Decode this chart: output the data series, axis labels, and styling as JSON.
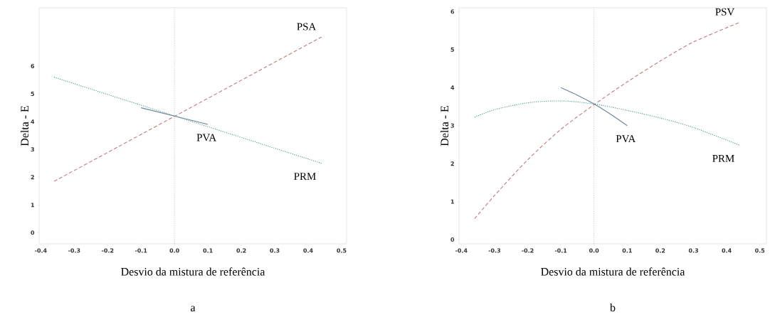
{
  "chart_data": [
    {
      "type": "line",
      "xlabel": "Desvio da mistura de referência",
      "ylabel": "Delta - E",
      "annotations": [
        "a"
      ],
      "xlim": [
        -0.405,
        0.515
      ],
      "ylim": [
        -0.4,
        8.1
      ],
      "xticks": [
        -0.4,
        -0.3,
        -0.2,
        -0.1,
        {
          "value": 0,
          "label": "0.0"
        },
        0.1,
        0.2,
        0.3,
        0.4,
        0.5
      ],
      "yticks": [
        0,
        1,
        2,
        3,
        4,
        5,
        6
      ],
      "ref_lines": [
        {
          "axis": "x",
          "value": 0,
          "color": "#a0a8b8",
          "line_style": "dotted"
        }
      ],
      "series": [
        {
          "name": "PSA",
          "color": "#c07a7a",
          "line_style": "dashed",
          "x": [
            -0.36,
            0.44
          ],
          "values": [
            1.85,
            7.05
          ]
        },
        {
          "name": "PRM",
          "color": "#4f9a8c",
          "line_style": "dotted",
          "x": [
            -0.36,
            0.44
          ],
          "values": [
            5.6,
            2.5
          ]
        },
        {
          "name": "PVA",
          "color": "#6d8096",
          "line_style": "solid",
          "x": [
            -0.1,
            0.1
          ],
          "values": [
            4.5,
            3.9
          ]
        }
      ]
    },
    {
      "type": "line",
      "xlabel": "Desvio da mistura de referência",
      "ylabel": "Delta - E",
      "annotations": [
        "b"
      ],
      "xlim": [
        -0.407,
        0.52
      ],
      "ylim": [
        -0.11,
        6.1
      ],
      "xticks": [
        -0.4,
        -0.3,
        -0.2,
        -0.1,
        {
          "value": 0,
          "label": "0.0"
        },
        0.1,
        0.2,
        0.3,
        0.4,
        0.5
      ],
      "yticks": [
        0,
        1,
        2,
        3,
        4,
        5,
        6
      ],
      "ref_lines": [
        {
          "axis": "x",
          "value": 0,
          "color": "#a0a8b8",
          "line_style": "dotted"
        }
      ],
      "series": [
        {
          "name": "PSV",
          "color": "#c07a7a",
          "line_style": "dashed",
          "x": [
            -0.36,
            -0.3,
            -0.2,
            -0.1,
            0,
            0.1,
            0.2,
            0.3,
            0.44
          ],
          "values": [
            0.55,
            1.16,
            2.1,
            2.9,
            3.55,
            4.15,
            4.7,
            5.2,
            5.72
          ]
        },
        {
          "name": "PRM",
          "color": "#4f9a8c",
          "line_style": "dotted",
          "x": [
            -0.36,
            -0.3,
            -0.2,
            -0.1,
            0,
            0.1,
            0.2,
            0.3,
            0.44
          ],
          "values": [
            3.22,
            3.42,
            3.6,
            3.65,
            3.57,
            3.4,
            3.2,
            2.95,
            2.48
          ]
        },
        {
          "name": "PVA",
          "color": "#6d8096",
          "line_style": "solid",
          "x": [
            -0.1,
            -0.05,
            0,
            0.05,
            0.1
          ],
          "values": [
            4.0,
            3.8,
            3.57,
            3.3,
            3.0
          ]
        }
      ]
    }
  ]
}
